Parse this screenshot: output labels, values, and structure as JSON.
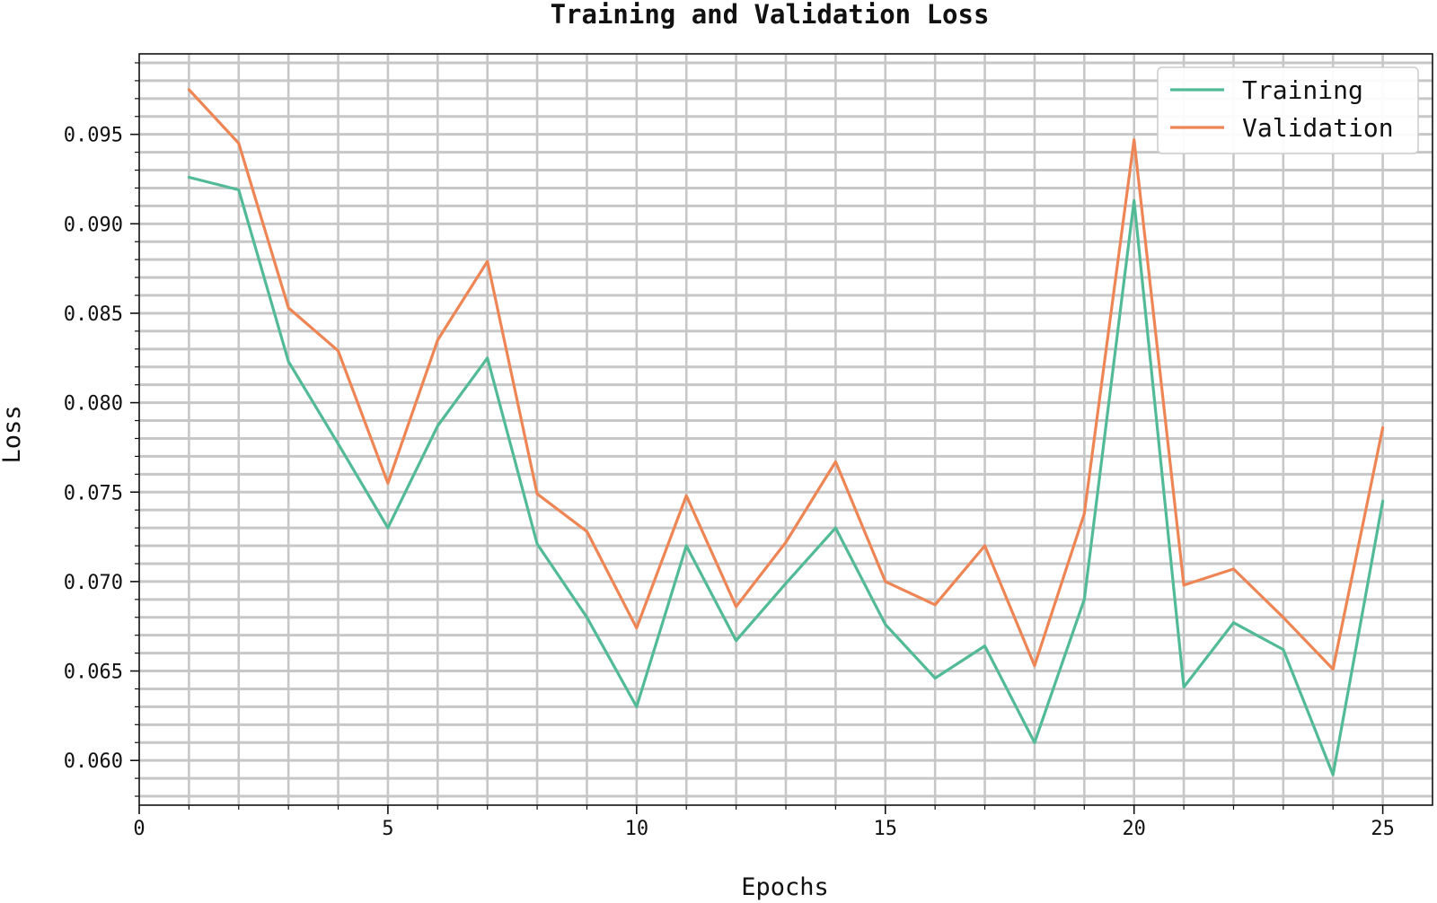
{
  "chart_data": {
    "type": "line",
    "title": "Training and Validation Loss",
    "xlabel": "Epochs",
    "ylabel": "Loss",
    "xlim": [
      0,
      26
    ],
    "ylim": [
      0.0575,
      0.0995
    ],
    "x_ticks": [
      0,
      5,
      10,
      15,
      20,
      25
    ],
    "y_ticks": [
      0.06,
      0.065,
      0.07,
      0.075,
      0.08,
      0.085,
      0.09,
      0.095
    ],
    "x_tick_labels": [
      "0",
      "5",
      "10",
      "15",
      "20",
      "25"
    ],
    "y_tick_labels": [
      "0.060",
      "0.065",
      "0.070",
      "0.075",
      "0.080",
      "0.085",
      "0.090",
      "0.095"
    ],
    "grid": true,
    "legend_position": "top-right",
    "x": [
      1,
      2,
      3,
      4,
      5,
      6,
      7,
      8,
      9,
      10,
      11,
      12,
      13,
      14,
      15,
      16,
      17,
      18,
      19,
      20,
      21,
      22,
      23,
      24,
      25
    ],
    "series": [
      {
        "name": "Training",
        "color": "#52bb96",
        "values": [
          0.0926,
          0.0919,
          0.0823,
          0.0777,
          0.073,
          0.0787,
          0.0825,
          0.0721,
          0.068,
          0.063,
          0.072,
          0.0667,
          0.0699,
          0.073,
          0.0676,
          0.0646,
          0.0664,
          0.061,
          0.069,
          0.0913,
          0.0641,
          0.0677,
          0.0662,
          0.0592,
          0.0745
        ]
      },
      {
        "name": "Validation",
        "color": "#ee8555",
        "values": [
          0.0975,
          0.0945,
          0.0853,
          0.0829,
          0.0755,
          0.0835,
          0.0879,
          0.0749,
          0.0728,
          0.0674,
          0.0748,
          0.0686,
          0.0722,
          0.0767,
          0.07,
          0.0687,
          0.072,
          0.0653,
          0.0738,
          0.0947,
          0.0698,
          0.0707,
          0.068,
          0.0651,
          0.0786
        ]
      }
    ]
  }
}
